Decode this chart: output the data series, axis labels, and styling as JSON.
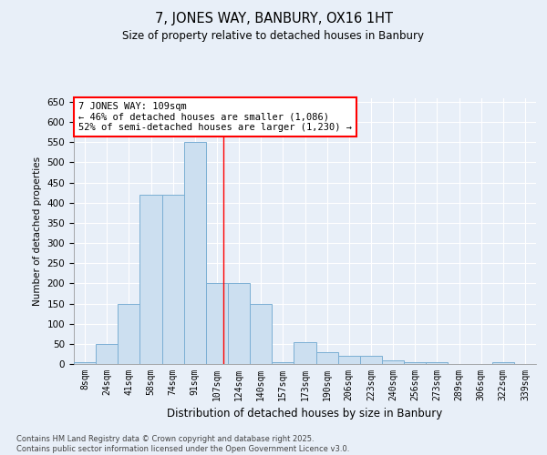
{
  "title1": "7, JONES WAY, BANBURY, OX16 1HT",
  "title2": "Size of property relative to detached houses in Banbury",
  "xlabel": "Distribution of detached houses by size in Banbury",
  "ylabel": "Number of detached properties",
  "categories": [
    "8sqm",
    "24sqm",
    "41sqm",
    "58sqm",
    "74sqm",
    "91sqm",
    "107sqm",
    "124sqm",
    "140sqm",
    "157sqm",
    "173sqm",
    "190sqm",
    "206sqm",
    "223sqm",
    "240sqm",
    "256sqm",
    "273sqm",
    "289sqm",
    "306sqm",
    "322sqm",
    "339sqm"
  ],
  "values": [
    5,
    50,
    150,
    420,
    420,
    550,
    200,
    200,
    150,
    5,
    55,
    30,
    20,
    20,
    10,
    5,
    5,
    0,
    0,
    5,
    0
  ],
  "bar_color": "#ccdff0",
  "bar_edge_color": "#7bafd4",
  "redline_x": 6.3,
  "annotation_text": "7 JONES WAY: 109sqm\n← 46% of detached houses are smaller (1,086)\n52% of semi-detached houses are larger (1,230) →",
  "ylim": [
    0,
    660
  ],
  "yticks": [
    0,
    50,
    100,
    150,
    200,
    250,
    300,
    350,
    400,
    450,
    500,
    550,
    600,
    650
  ],
  "footer": "Contains HM Land Registry data © Crown copyright and database right 2025.\nContains public sector information licensed under the Open Government Licence v3.0.",
  "bg_color": "#e8eff8",
  "plot_bg_color": "#e8eff8",
  "grid_color": "#ffffff"
}
